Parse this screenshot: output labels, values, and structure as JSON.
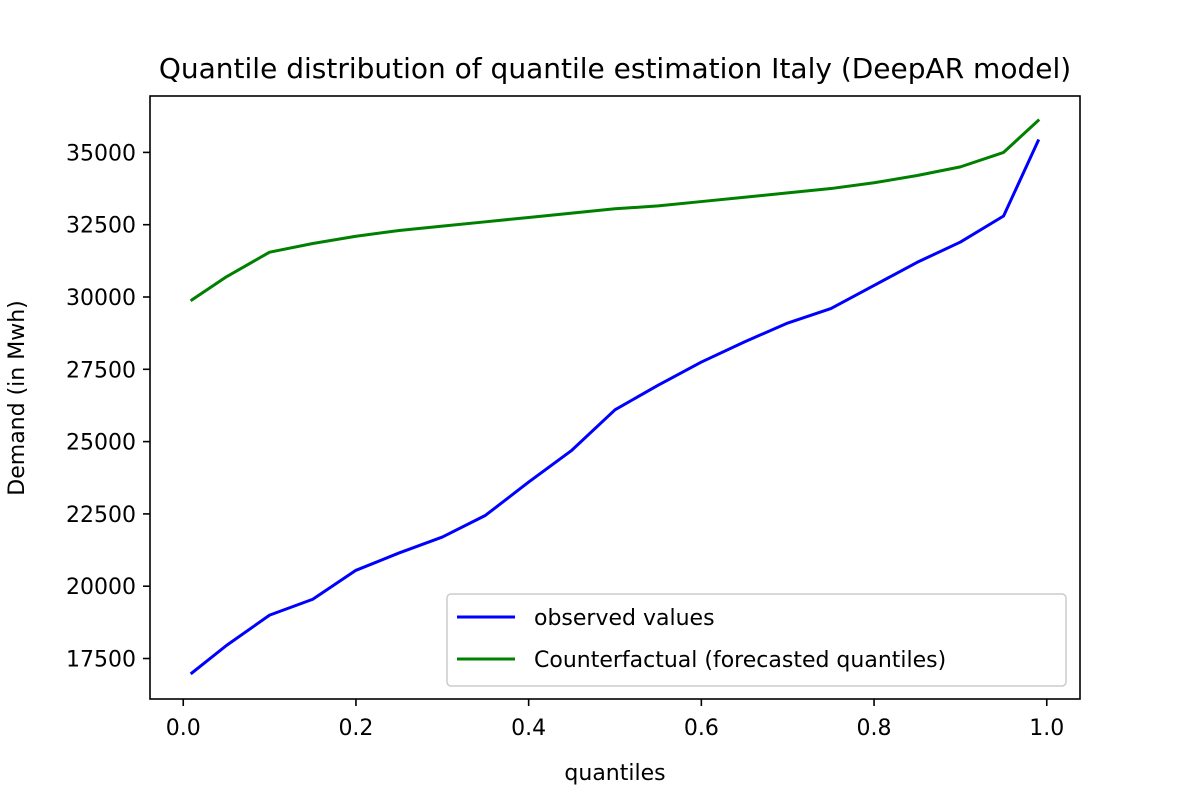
{
  "chart_data": {
    "type": "line",
    "title": "Quantile distribution of quantile estimation Italy (DeepAR model)",
    "xlabel": "quantiles",
    "ylabel": "Demand (in Mwh)",
    "xlim": [
      -0.0385,
      1.0385
    ],
    "ylim": [
      16100,
      36950
    ],
    "x_ticks": [
      0.0,
      0.2,
      0.4,
      0.6,
      0.8,
      1.0
    ],
    "x_tick_labels": [
      "0.0",
      "0.2",
      "0.4",
      "0.6",
      "0.8",
      "1.0"
    ],
    "y_ticks": [
      17500,
      20000,
      22500,
      25000,
      27500,
      30000,
      32500,
      35000
    ],
    "y_tick_labels": [
      "17500",
      "20000",
      "22500",
      "25000",
      "27500",
      "30000",
      "32500",
      "35000"
    ],
    "grid": false,
    "legend_position": "lower-right",
    "x": [
      0.01,
      0.05,
      0.1,
      0.15,
      0.2,
      0.25,
      0.3,
      0.35,
      0.4,
      0.45,
      0.5,
      0.55,
      0.6,
      0.65,
      0.7,
      0.75,
      0.8,
      0.85,
      0.9,
      0.95,
      0.99
    ],
    "series": [
      {
        "name": "observed values",
        "color": "#0000ff",
        "values": [
          17000,
          17950,
          19000,
          19550,
          20550,
          21150,
          21700,
          22450,
          23600,
          24700,
          26100,
          26950,
          27750,
          28450,
          29100,
          29600,
          30400,
          31200,
          31900,
          32800,
          35400
        ]
      },
      {
        "name": "Counterfactual (forecasted quantiles)",
        "color": "#008000",
        "values": [
          29900,
          30700,
          31550,
          31850,
          32100,
          32300,
          32450,
          32600,
          32750,
          32900,
          33050,
          33150,
          33300,
          33450,
          33600,
          33750,
          33950,
          34200,
          34500,
          35000,
          36100
        ]
      }
    ]
  }
}
